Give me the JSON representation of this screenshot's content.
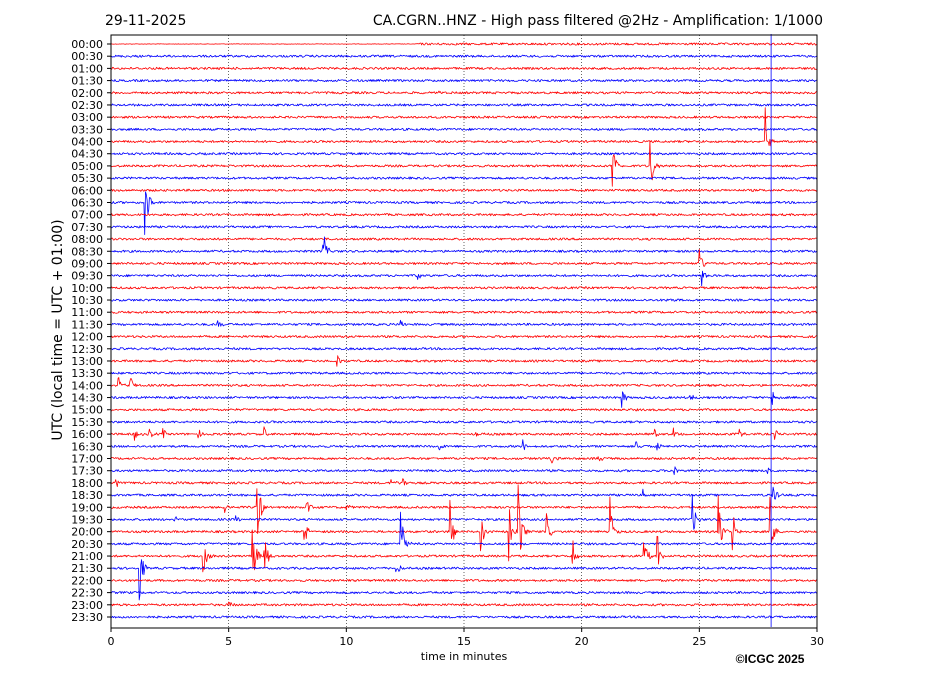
{
  "header": {
    "date": "29-11-2025",
    "title": "CA.CGRN..HNZ - High pass filtered @2Hz - Amplification: 1/1000"
  },
  "footer": {
    "copyright": "©ICGC 2025"
  },
  "chart_data": {
    "type": "line",
    "subtype": "helicorder",
    "xlabel": "time in minutes",
    "ylabel": "UTC (local time = UTC + 01:00)",
    "xlim": [
      0,
      30
    ],
    "x_ticks": [
      "0",
      "5",
      "10",
      "15",
      "20",
      "25",
      "30"
    ],
    "grid": "vertical dotted at 5-minute intervals",
    "row_colors": [
      "#ff0000",
      "#0000ff"
    ],
    "row_labels": [
      "00:00",
      "00:30",
      "01:00",
      "01:30",
      "02:00",
      "02:30",
      "03:00",
      "03:30",
      "04:00",
      "04:30",
      "05:00",
      "05:30",
      "06:00",
      "06:30",
      "07:00",
      "07:30",
      "08:00",
      "08:30",
      "09:00",
      "09:30",
      "10:00",
      "10:30",
      "11:00",
      "11:30",
      "12:00",
      "12:30",
      "13:00",
      "13:30",
      "14:00",
      "14:30",
      "15:00",
      "15:30",
      "16:00",
      "16:30",
      "17:00",
      "17:30",
      "18:00",
      "18:30",
      "19:00",
      "19:30",
      "20:00",
      "20:30",
      "21:00",
      "21:30",
      "22:00",
      "22:30",
      "23:00",
      "23:30"
    ],
    "events": [
      {
        "row": 4,
        "minute": 13.8,
        "amp": 0.3
      },
      {
        "row": 8,
        "minute": 27.8,
        "amp": 3
      },
      {
        "row": 10,
        "minute": 21.3,
        "amp": 3
      },
      {
        "row": 10,
        "minute": 22.9,
        "amp": 3
      },
      {
        "row": 13,
        "minute": 1.45,
        "amp": 3
      },
      {
        "row": 17,
        "minute": 9.0,
        "amp": 2.5
      },
      {
        "row": 18,
        "minute": 25.0,
        "amp": 1.5
      },
      {
        "row": 19,
        "minute": 13.0,
        "amp": 0.6
      },
      {
        "row": 19,
        "minute": 25.1,
        "amp": 1
      },
      {
        "row": 21,
        "minute": 23.6,
        "amp": 0.6
      },
      {
        "row": 23,
        "minute": 4.5,
        "amp": 0.6
      },
      {
        "row": 23,
        "minute": 12.3,
        "amp": 0.5
      },
      {
        "row": 26,
        "minute": 9.6,
        "amp": 0.6
      },
      {
        "row": 26,
        "minute": 13.6,
        "amp": 0.4
      },
      {
        "row": 28,
        "minute": 0.3,
        "amp": 1
      },
      {
        "row": 28,
        "minute": 0.8,
        "amp": 1.2
      },
      {
        "row": 29,
        "minute": 21.7,
        "amp": 1
      },
      {
        "row": 29,
        "minute": 24.6,
        "amp": 0.5
      },
      {
        "row": 29,
        "minute": 28.1,
        "amp": 0.8
      },
      {
        "row": 32,
        "minute": 1.0,
        "amp": 0.6
      },
      {
        "row": 32,
        "minute": 1.6,
        "amp": 0.6
      },
      {
        "row": 32,
        "minute": 2.2,
        "amp": 0.5
      },
      {
        "row": 32,
        "minute": 3.7,
        "amp": 0.5
      },
      {
        "row": 32,
        "minute": 6.5,
        "amp": 0.6
      },
      {
        "row": 32,
        "minute": 15.5,
        "amp": 0.4
      },
      {
        "row": 32,
        "minute": 23.1,
        "amp": 0.5
      },
      {
        "row": 32,
        "minute": 23.9,
        "amp": 0.5
      },
      {
        "row": 32,
        "minute": 26.7,
        "amp": 0.5
      },
      {
        "row": 32,
        "minute": 28.2,
        "amp": 0.5
      },
      {
        "row": 33,
        "minute": 13.9,
        "amp": 0.6
      },
      {
        "row": 33,
        "minute": 17.5,
        "amp": 0.6
      },
      {
        "row": 33,
        "minute": 22.3,
        "amp": 0.6
      },
      {
        "row": 33,
        "minute": 23.2,
        "amp": 0.5
      },
      {
        "row": 34,
        "minute": 18.7,
        "amp": 0.5
      },
      {
        "row": 34,
        "minute": 20.7,
        "amp": 0.4
      },
      {
        "row": 35,
        "minute": 23.9,
        "amp": 0.6
      },
      {
        "row": 35,
        "minute": 27.9,
        "amp": 0.6
      },
      {
        "row": 36,
        "minute": 0.2,
        "amp": 0.5
      },
      {
        "row": 36,
        "minute": 11.9,
        "amp": 0.6
      },
      {
        "row": 36,
        "minute": 12.4,
        "amp": 0.5
      },
      {
        "row": 37,
        "minute": 22.6,
        "amp": 0.5
      },
      {
        "row": 37,
        "minute": 28.1,
        "amp": 1.5
      },
      {
        "row": 38,
        "minute": 4.8,
        "amp": 0.6
      },
      {
        "row": 38,
        "minute": 6.2,
        "amp": 4
      },
      {
        "row": 38,
        "minute": 8.3,
        "amp": 1
      },
      {
        "row": 38,
        "minute": 10.0,
        "amp": 0.4
      },
      {
        "row": 39,
        "minute": 2.7,
        "amp": 0.4
      },
      {
        "row": 39,
        "minute": 5.3,
        "amp": 0.4
      },
      {
        "row": 39,
        "minute": 24.7,
        "amp": 2
      },
      {
        "row": 40,
        "minute": 8.2,
        "amp": 1.5
      },
      {
        "row": 40,
        "minute": 14.4,
        "amp": 3
      },
      {
        "row": 40,
        "minute": 15.7,
        "amp": 2
      },
      {
        "row": 40,
        "minute": 16.9,
        "amp": 3
      },
      {
        "row": 40,
        "minute": 17.3,
        "amp": 4
      },
      {
        "row": 40,
        "minute": 18.5,
        "amp": 1.5
      },
      {
        "row": 40,
        "minute": 21.2,
        "amp": 3
      },
      {
        "row": 40,
        "minute": 25.8,
        "amp": 4
      },
      {
        "row": 40,
        "minute": 26.4,
        "amp": 2
      },
      {
        "row": 40,
        "minute": 28.0,
        "amp": 3
      },
      {
        "row": 41,
        "minute": 12.3,
        "amp": 4
      },
      {
        "row": 42,
        "minute": 3.9,
        "amp": 2
      },
      {
        "row": 42,
        "minute": 6.0,
        "amp": 4
      },
      {
        "row": 42,
        "minute": 6.5,
        "amp": 3
      },
      {
        "row": 42,
        "minute": 19.6,
        "amp": 2
      },
      {
        "row": 42,
        "minute": 22.6,
        "amp": 3
      },
      {
        "row": 42,
        "minute": 23.2,
        "amp": 3
      },
      {
        "row": 43,
        "minute": 1.2,
        "amp": 3
      },
      {
        "row": 43,
        "minute": 12.1,
        "amp": 1
      },
      {
        "row": 46,
        "minute": 5.0,
        "amp": 0.5
      }
    ],
    "long_spikes": [
      {
        "minute": 28.05,
        "from_row": 0,
        "to_row": 47,
        "color": "#0000ff"
      }
    ]
  }
}
